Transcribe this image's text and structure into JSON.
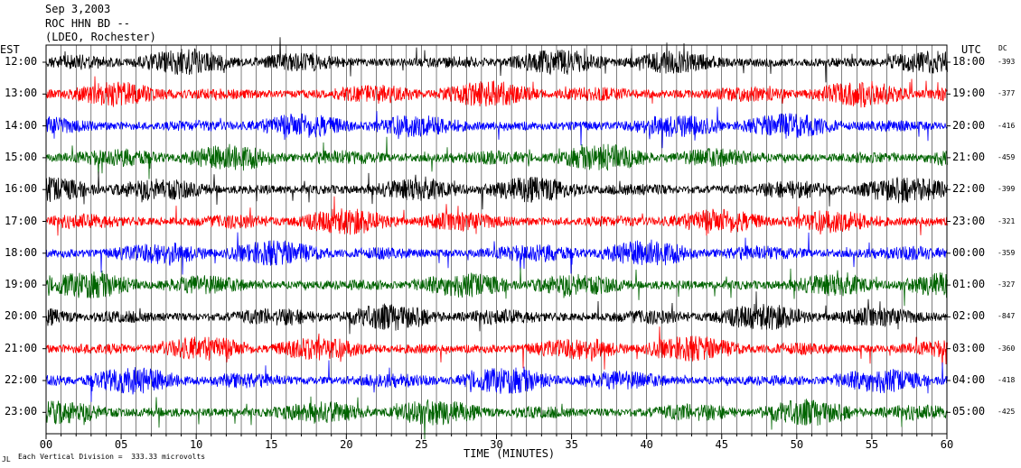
{
  "header": {
    "line1": "Sep 3,2003",
    "line2": "ROC HHN BD --",
    "line3": "(LDEO, Rochester)"
  },
  "left_tz": "EST",
  "right_tz": "UTC",
  "dc_header": "DC",
  "footer_note": "Each Vertical Division =  333.33 microvolts",
  "footer_mark": "JL",
  "chart_data": {
    "type": "line",
    "title": "",
    "xlabel": "TIME (MINUTES)",
    "ylabel": "",
    "xlim": [
      0,
      60
    ],
    "x_ticks": [
      "00",
      "05",
      "10",
      "15",
      "20",
      "25",
      "30",
      "35",
      "40",
      "45",
      "50",
      "55",
      "60"
    ],
    "trace_colors": [
      "#000000",
      "#ff0000",
      "#0000ff",
      "#006400"
    ],
    "rows": [
      {
        "est": "12:00",
        "utc": "18:00",
        "dc": "-393"
      },
      {
        "est": "13:00",
        "utc": "19:00",
        "dc": "-377"
      },
      {
        "est": "14:00",
        "utc": "20:00",
        "dc": "-416"
      },
      {
        "est": "15:00",
        "utc": "21:00",
        "dc": "-459"
      },
      {
        "est": "16:00",
        "utc": "22:00",
        "dc": "-399"
      },
      {
        "est": "17:00",
        "utc": "23:00",
        "dc": "-321"
      },
      {
        "est": "18:00",
        "utc": "00:00",
        "dc": "-359"
      },
      {
        "est": "19:00",
        "utc": "01:00",
        "dc": "-327"
      },
      {
        "est": "20:00",
        "utc": "02:00",
        "dc": "-847"
      },
      {
        "est": "21:00",
        "utc": "03:00",
        "dc": "-360"
      },
      {
        "est": "22:00",
        "utc": "04:00",
        "dc": "-418"
      },
      {
        "est": "23:00",
        "utc": "05:00",
        "dc": "-425"
      }
    ]
  }
}
